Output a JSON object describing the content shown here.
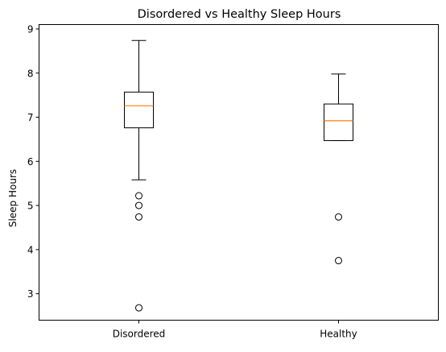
{
  "chart_data": {
    "type": "box",
    "title": "Disordered vs Healthy Sleep Hours",
    "xlabel": "",
    "ylabel": "Sleep Hours",
    "categories": [
      "Disordered",
      "Healthy"
    ],
    "ylim": [
      2.4,
      9.1
    ],
    "yticks": [
      3,
      4,
      5,
      6,
      7,
      8,
      9
    ],
    "grid": false,
    "boxes": [
      {
        "category": "Disordered",
        "whisker_low": 5.58,
        "q1": 6.76,
        "median": 7.26,
        "q3": 7.57,
        "whisker_high": 8.74,
        "outliers": [
          5.22,
          5.0,
          4.74,
          2.68
        ]
      },
      {
        "category": "Healthy",
        "whisker_low": 6.47,
        "q1": 6.47,
        "median": 6.92,
        "q3": 7.3,
        "whisker_high": 7.98,
        "outliers": [
          4.74,
          3.75
        ]
      }
    ],
    "colors": {
      "box": "#000000",
      "median": "#ff7f0e",
      "outlier": "#000000"
    }
  }
}
